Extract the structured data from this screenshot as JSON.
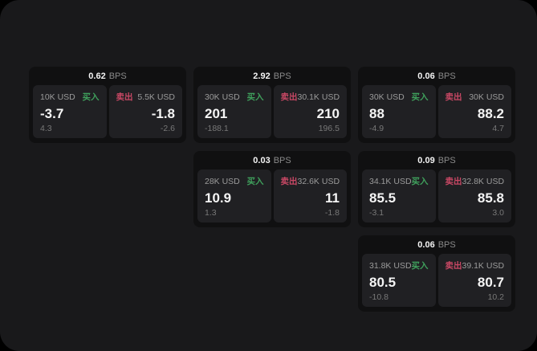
{
  "labels": {
    "bps_unit": "BPS",
    "buy": "买入",
    "sell": "卖出"
  },
  "colors": {
    "buy": "#3fa05c",
    "sell": "#c94865",
    "surface": "#19191b",
    "card": "#101011",
    "panel": "#202023"
  },
  "cards": [
    {
      "grid": {
        "row": 1,
        "col": 1
      },
      "bps": "0.62",
      "buy": {
        "notional": "10K USD",
        "price": "-3.7",
        "change": "4.3"
      },
      "sell": {
        "notional": "5.5K USD",
        "price": "-1.8",
        "change": "-2.6"
      }
    },
    {
      "grid": {
        "row": 1,
        "col": 2
      },
      "bps": "2.92",
      "buy": {
        "notional": "30K USD",
        "price": "201",
        "change": "-188.1"
      },
      "sell": {
        "notional": "30.1K USD",
        "price": "210",
        "change": "196.5"
      }
    },
    {
      "grid": {
        "row": 1,
        "col": 3
      },
      "bps": "0.06",
      "buy": {
        "notional": "30K USD",
        "price": "88",
        "change": "-4.9"
      },
      "sell": {
        "notional": "30K USD",
        "price": "88.2",
        "change": "4.7"
      }
    },
    {
      "grid": {
        "row": 2,
        "col": 2
      },
      "bps": "0.03",
      "buy": {
        "notional": "28K USD",
        "price": "10.9",
        "change": "1.3"
      },
      "sell": {
        "notional": "32.6K USD",
        "price": "11",
        "change": "-1.8"
      }
    },
    {
      "grid": {
        "row": 2,
        "col": 3
      },
      "bps": "0.09",
      "buy": {
        "notional": "34.1K USD",
        "price": "85.5",
        "change": "-3.1"
      },
      "sell": {
        "notional": "32.8K USD",
        "price": "85.8",
        "change": "3.0"
      }
    },
    {
      "grid": {
        "row": 3,
        "col": 3
      },
      "bps": "0.06",
      "buy": {
        "notional": "31.8K USD",
        "price": "80.5",
        "change": "-10.8"
      },
      "sell": {
        "notional": "39.1K USD",
        "price": "80.7",
        "change": "10.2"
      }
    }
  ]
}
